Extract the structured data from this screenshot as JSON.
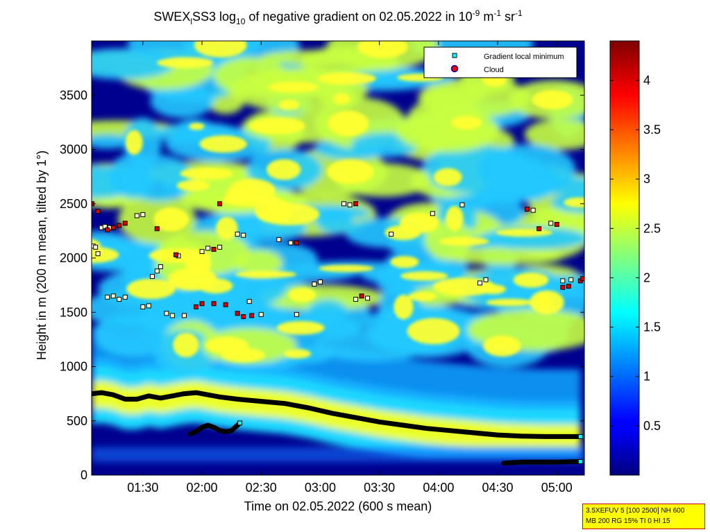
{
  "chart_data": {
    "type": "heatmap",
    "title": {
      "prefix": "SWEX",
      "prefix_sub": "l",
      "part1": "SS3 log",
      "part1_sub": "10",
      "part2": " of negative gradient on 02.05.2022 in 10",
      "part2_sup": "-9",
      "part3": " m",
      "part3_sup": "-1",
      "part4": " sr",
      "part4_sup": "-1"
    },
    "xlabel": "Time on 02.05.2022 (600 s mean)",
    "ylabel": "Height in m (200 m mean, tilted by 1°)",
    "x_range_hours": [
      1.0667,
      5.2333
    ],
    "xlim": [
      "01:04",
      "05:14"
    ],
    "ylim": [
      0,
      4000
    ],
    "x_ticks": [
      {
        "label": "01:30",
        "hours": 1.5
      },
      {
        "label": "02:00",
        "hours": 2.0
      },
      {
        "label": "02:30",
        "hours": 2.5
      },
      {
        "label": "03:00",
        "hours": 3.0
      },
      {
        "label": "03:30",
        "hours": 3.5
      },
      {
        "label": "04:00",
        "hours": 4.0
      },
      {
        "label": "04:30",
        "hours": 4.5
      },
      {
        "label": "05:00",
        "hours": 5.0
      }
    ],
    "y_ticks": [
      0,
      500,
      1000,
      1500,
      2000,
      2500,
      3000,
      3500
    ],
    "colorbar": {
      "colormap": "jet",
      "range": [
        0,
        4.4
      ],
      "ticks": [
        "0.5",
        "1",
        "1.5",
        "2",
        "2.5",
        "3",
        "3.5",
        "4"
      ],
      "tick_values": [
        0.5,
        1,
        1.5,
        2,
        2.5,
        3,
        3.5,
        4
      ]
    },
    "legend": {
      "placement": "top-right",
      "entries": [
        {
          "label": "Gradient local minimum",
          "marker": "square",
          "color": "#00ffff"
        },
        {
          "label": "Cloud",
          "marker": "circle",
          "color": "#ff0000"
        }
      ]
    },
    "boundary_layer_line": [
      [
        1.07,
        750
      ],
      [
        1.15,
        760
      ],
      [
        1.25,
        740
      ],
      [
        1.35,
        700
      ],
      [
        1.45,
        700
      ],
      [
        1.55,
        730
      ],
      [
        1.65,
        710
      ],
      [
        1.75,
        730
      ],
      [
        1.85,
        750
      ],
      [
        1.95,
        760
      ],
      [
        2.05,
        740
      ],
      [
        2.15,
        720
      ],
      [
        2.3,
        700
      ],
      [
        2.5,
        680
      ],
      [
        2.7,
        660
      ],
      [
        2.9,
        620
      ],
      [
        3.1,
        570
      ],
      [
        3.3,
        530
      ],
      [
        3.5,
        490
      ],
      [
        3.7,
        460
      ],
      [
        3.9,
        430
      ],
      [
        4.1,
        410
      ],
      [
        4.3,
        390
      ],
      [
        4.5,
        370
      ],
      [
        4.7,
        360
      ],
      [
        4.9,
        355
      ],
      [
        5.2,
        355
      ]
    ],
    "lower_layer_line": [
      [
        1.9,
        380
      ],
      [
        1.95,
        400
      ],
      [
        2.0,
        440
      ],
      [
        2.05,
        460
      ],
      [
        2.1,
        440
      ],
      [
        2.15,
        410
      ],
      [
        2.2,
        400
      ],
      [
        2.25,
        410
      ],
      [
        2.3,
        460
      ],
      [
        2.32,
        480
      ]
    ],
    "surface_layer_line": [
      [
        4.55,
        110
      ],
      [
        4.7,
        120
      ],
      [
        4.9,
        120
      ],
      [
        5.0,
        120
      ],
      [
        5.2,
        125
      ]
    ],
    "gradient_minima": [
      [
        1.08,
        2110
      ],
      [
        1.1,
        2100
      ],
      [
        1.12,
        2040
      ],
      [
        1.15,
        2280
      ],
      [
        1.18,
        2290
      ],
      [
        1.22,
        2280
      ],
      [
        1.2,
        1640
      ],
      [
        1.25,
        1650
      ],
      [
        1.3,
        1620
      ],
      [
        1.35,
        1640
      ],
      [
        1.45,
        2390
      ],
      [
        1.5,
        2400
      ],
      [
        1.5,
        1550
      ],
      [
        1.55,
        1560
      ],
      [
        1.58,
        1830
      ],
      [
        1.62,
        1880
      ],
      [
        1.65,
        1920
      ],
      [
        1.7,
        1490
      ],
      [
        1.75,
        1470
      ],
      [
        1.8,
        2020
      ],
      [
        1.85,
        1470
      ],
      [
        2.0,
        2060
      ],
      [
        2.05,
        2090
      ],
      [
        2.15,
        2100
      ],
      [
        2.3,
        2220
      ],
      [
        2.35,
        2210
      ],
      [
        2.4,
        1600
      ],
      [
        2.5,
        1480
      ],
      [
        2.65,
        2170
      ],
      [
        2.75,
        2140
      ],
      [
        2.8,
        1480
      ],
      [
        2.95,
        1760
      ],
      [
        3.0,
        1780
      ],
      [
        3.2,
        2500
      ],
      [
        3.25,
        2490
      ],
      [
        3.3,
        1620
      ],
      [
        3.4,
        1630
      ],
      [
        3.6,
        2220
      ],
      [
        3.95,
        2410
      ],
      [
        4.2,
        2490
      ],
      [
        4.35,
        1770
      ],
      [
        4.4,
        1800
      ],
      [
        4.8,
        2440
      ],
      [
        4.95,
        2320
      ],
      [
        5.05,
        1790
      ],
      [
        5.12,
        1800
      ]
    ],
    "clouds": [
      [
        1.07,
        2500
      ],
      [
        1.12,
        2430
      ],
      [
        1.2,
        2260
      ],
      [
        1.25,
        2280
      ],
      [
        1.3,
        2300
      ],
      [
        1.35,
        2320
      ],
      [
        1.62,
        2270
      ],
      [
        1.78,
        2030
      ],
      [
        1.95,
        1550
      ],
      [
        2.0,
        1580
      ],
      [
        2.1,
        1580
      ],
      [
        2.2,
        1570
      ],
      [
        2.1,
        2080
      ],
      [
        2.15,
        2500
      ],
      [
        2.3,
        1490
      ],
      [
        2.35,
        1460
      ],
      [
        2.42,
        1470
      ],
      [
        2.8,
        2140
      ],
      [
        3.3,
        2500
      ],
      [
        3.35,
        1650
      ],
      [
        4.75,
        2450
      ],
      [
        4.85,
        2270
      ],
      [
        5.0,
        2310
      ],
      [
        5.05,
        1730
      ],
      [
        5.1,
        1740
      ],
      [
        5.2,
        1790
      ],
      [
        5.22,
        1810
      ]
    ]
  },
  "info_box": {
    "line1": "3.5XEFUV 5 [100 2500] NH 600",
    "line2": "MB 200 RG 15% TI 0 HI 15"
  }
}
